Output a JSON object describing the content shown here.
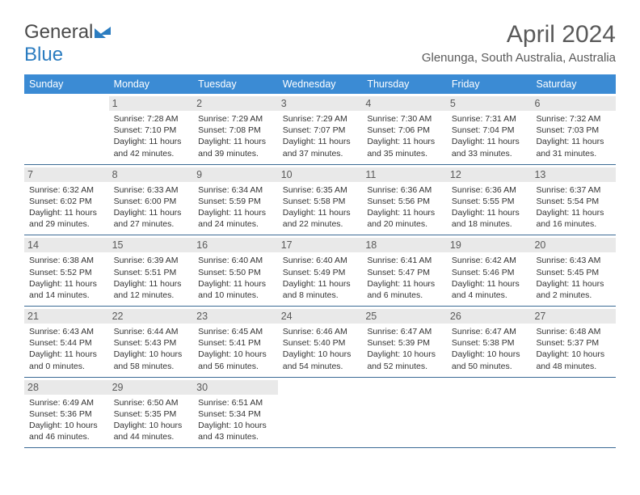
{
  "brand": {
    "part1": "General",
    "part2": "Blue"
  },
  "month_title": "April 2024",
  "location": "Glenunga, South Australia, Australia",
  "header_bg": "#3b8bd4",
  "weekday_labels": [
    "Sunday",
    "Monday",
    "Tuesday",
    "Wednesday",
    "Thursday",
    "Friday",
    "Saturday"
  ],
  "weeks": [
    [
      {
        "n": "",
        "sunrise": "",
        "sunset": "",
        "daylight": ""
      },
      {
        "n": "1",
        "sunrise": "Sunrise: 7:28 AM",
        "sunset": "Sunset: 7:10 PM",
        "daylight": "Daylight: 11 hours and 42 minutes."
      },
      {
        "n": "2",
        "sunrise": "Sunrise: 7:29 AM",
        "sunset": "Sunset: 7:08 PM",
        "daylight": "Daylight: 11 hours and 39 minutes."
      },
      {
        "n": "3",
        "sunrise": "Sunrise: 7:29 AM",
        "sunset": "Sunset: 7:07 PM",
        "daylight": "Daylight: 11 hours and 37 minutes."
      },
      {
        "n": "4",
        "sunrise": "Sunrise: 7:30 AM",
        "sunset": "Sunset: 7:06 PM",
        "daylight": "Daylight: 11 hours and 35 minutes."
      },
      {
        "n": "5",
        "sunrise": "Sunrise: 7:31 AM",
        "sunset": "Sunset: 7:04 PM",
        "daylight": "Daylight: 11 hours and 33 minutes."
      },
      {
        "n": "6",
        "sunrise": "Sunrise: 7:32 AM",
        "sunset": "Sunset: 7:03 PM",
        "daylight": "Daylight: 11 hours and 31 minutes."
      }
    ],
    [
      {
        "n": "7",
        "sunrise": "Sunrise: 6:32 AM",
        "sunset": "Sunset: 6:02 PM",
        "daylight": "Daylight: 11 hours and 29 minutes."
      },
      {
        "n": "8",
        "sunrise": "Sunrise: 6:33 AM",
        "sunset": "Sunset: 6:00 PM",
        "daylight": "Daylight: 11 hours and 27 minutes."
      },
      {
        "n": "9",
        "sunrise": "Sunrise: 6:34 AM",
        "sunset": "Sunset: 5:59 PM",
        "daylight": "Daylight: 11 hours and 24 minutes."
      },
      {
        "n": "10",
        "sunrise": "Sunrise: 6:35 AM",
        "sunset": "Sunset: 5:58 PM",
        "daylight": "Daylight: 11 hours and 22 minutes."
      },
      {
        "n": "11",
        "sunrise": "Sunrise: 6:36 AM",
        "sunset": "Sunset: 5:56 PM",
        "daylight": "Daylight: 11 hours and 20 minutes."
      },
      {
        "n": "12",
        "sunrise": "Sunrise: 6:36 AM",
        "sunset": "Sunset: 5:55 PM",
        "daylight": "Daylight: 11 hours and 18 minutes."
      },
      {
        "n": "13",
        "sunrise": "Sunrise: 6:37 AM",
        "sunset": "Sunset: 5:54 PM",
        "daylight": "Daylight: 11 hours and 16 minutes."
      }
    ],
    [
      {
        "n": "14",
        "sunrise": "Sunrise: 6:38 AM",
        "sunset": "Sunset: 5:52 PM",
        "daylight": "Daylight: 11 hours and 14 minutes."
      },
      {
        "n": "15",
        "sunrise": "Sunrise: 6:39 AM",
        "sunset": "Sunset: 5:51 PM",
        "daylight": "Daylight: 11 hours and 12 minutes."
      },
      {
        "n": "16",
        "sunrise": "Sunrise: 6:40 AM",
        "sunset": "Sunset: 5:50 PM",
        "daylight": "Daylight: 11 hours and 10 minutes."
      },
      {
        "n": "17",
        "sunrise": "Sunrise: 6:40 AM",
        "sunset": "Sunset: 5:49 PM",
        "daylight": "Daylight: 11 hours and 8 minutes."
      },
      {
        "n": "18",
        "sunrise": "Sunrise: 6:41 AM",
        "sunset": "Sunset: 5:47 PM",
        "daylight": "Daylight: 11 hours and 6 minutes."
      },
      {
        "n": "19",
        "sunrise": "Sunrise: 6:42 AM",
        "sunset": "Sunset: 5:46 PM",
        "daylight": "Daylight: 11 hours and 4 minutes."
      },
      {
        "n": "20",
        "sunrise": "Sunrise: 6:43 AM",
        "sunset": "Sunset: 5:45 PM",
        "daylight": "Daylight: 11 hours and 2 minutes."
      }
    ],
    [
      {
        "n": "21",
        "sunrise": "Sunrise: 6:43 AM",
        "sunset": "Sunset: 5:44 PM",
        "daylight": "Daylight: 11 hours and 0 minutes."
      },
      {
        "n": "22",
        "sunrise": "Sunrise: 6:44 AM",
        "sunset": "Sunset: 5:43 PM",
        "daylight": "Daylight: 10 hours and 58 minutes."
      },
      {
        "n": "23",
        "sunrise": "Sunrise: 6:45 AM",
        "sunset": "Sunset: 5:41 PM",
        "daylight": "Daylight: 10 hours and 56 minutes."
      },
      {
        "n": "24",
        "sunrise": "Sunrise: 6:46 AM",
        "sunset": "Sunset: 5:40 PM",
        "daylight": "Daylight: 10 hours and 54 minutes."
      },
      {
        "n": "25",
        "sunrise": "Sunrise: 6:47 AM",
        "sunset": "Sunset: 5:39 PM",
        "daylight": "Daylight: 10 hours and 52 minutes."
      },
      {
        "n": "26",
        "sunrise": "Sunrise: 6:47 AM",
        "sunset": "Sunset: 5:38 PM",
        "daylight": "Daylight: 10 hours and 50 minutes."
      },
      {
        "n": "27",
        "sunrise": "Sunrise: 6:48 AM",
        "sunset": "Sunset: 5:37 PM",
        "daylight": "Daylight: 10 hours and 48 minutes."
      }
    ],
    [
      {
        "n": "28",
        "sunrise": "Sunrise: 6:49 AM",
        "sunset": "Sunset: 5:36 PM",
        "daylight": "Daylight: 10 hours and 46 minutes."
      },
      {
        "n": "29",
        "sunrise": "Sunrise: 6:50 AM",
        "sunset": "Sunset: 5:35 PM",
        "daylight": "Daylight: 10 hours and 44 minutes."
      },
      {
        "n": "30",
        "sunrise": "Sunrise: 6:51 AM",
        "sunset": "Sunset: 5:34 PM",
        "daylight": "Daylight: 10 hours and 43 minutes."
      },
      {
        "n": "",
        "sunrise": "",
        "sunset": "",
        "daylight": ""
      },
      {
        "n": "",
        "sunrise": "",
        "sunset": "",
        "daylight": ""
      },
      {
        "n": "",
        "sunrise": "",
        "sunset": "",
        "daylight": ""
      },
      {
        "n": "",
        "sunrise": "",
        "sunset": "",
        "daylight": ""
      }
    ]
  ]
}
